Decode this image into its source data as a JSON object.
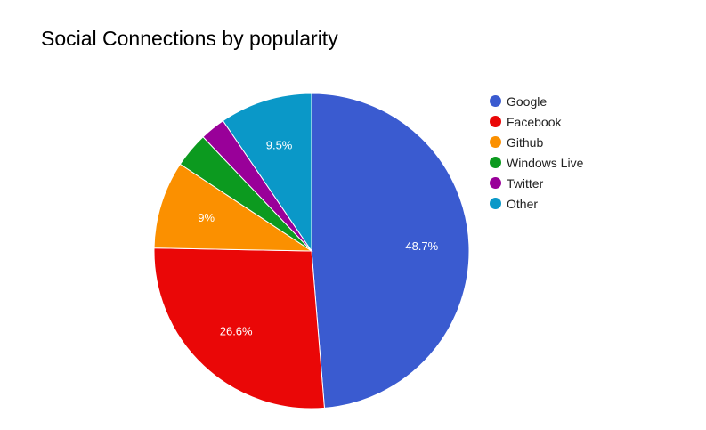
{
  "chart_data": {
    "type": "pie",
    "title": "Social Connections by popularity",
    "slices": [
      {
        "label": "Google",
        "value": 48.7,
        "display": "48.7%",
        "color": "#3a5bd0"
      },
      {
        "label": "Facebook",
        "value": 26.6,
        "display": "26.6%",
        "color": "#ea0707"
      },
      {
        "label": "Github",
        "value": 9.0,
        "display": "9%",
        "color": "#fb9000"
      },
      {
        "label": "Windows Live",
        "value": 3.6,
        "display": "",
        "color": "#0c9a1f"
      },
      {
        "label": "Twitter",
        "value": 2.6,
        "display": "",
        "color": "#990099"
      },
      {
        "label": "Other",
        "value": 9.5,
        "display": "9.5%",
        "color": "#0a98c8"
      }
    ],
    "legend_position": "right"
  }
}
